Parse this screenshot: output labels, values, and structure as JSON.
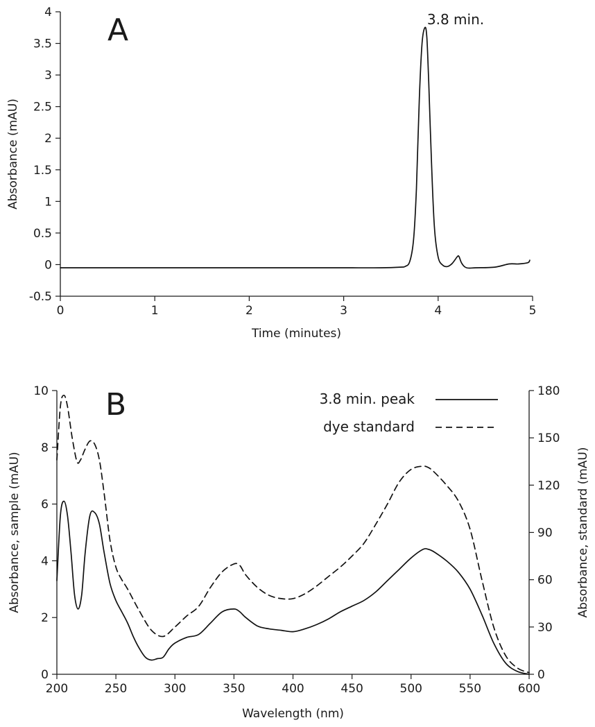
{
  "chart_data": [
    {
      "type": "line",
      "panel_label": "A",
      "xlabel": "Time (minutes)",
      "ylabel": "Absorbance (mAU)",
      "xlim": [
        0,
        5
      ],
      "ylim": [
        -0.5,
        4
      ],
      "xticks": [
        0,
        1,
        2,
        3,
        4,
        5
      ],
      "yticks": [
        -0.5,
        0,
        0.5,
        1,
        1.5,
        2,
        2.5,
        3,
        3.5,
        4
      ],
      "ytick_labels": [
        "-0.5",
        "0",
        "0.5",
        "1",
        "1.5",
        "2",
        "2.5",
        "3",
        "3.5",
        "4"
      ],
      "annotation": "3.8 min.",
      "grid": false,
      "series": [
        {
          "x": [
            0,
            0.5,
            1,
            1.5,
            2,
            2.5,
            3,
            3.4,
            3.6,
            3.65,
            3.7,
            3.74,
            3.77,
            3.8,
            3.83,
            3.86,
            3.88,
            3.9,
            3.93,
            3.96,
            4.0,
            4.05,
            4.1,
            4.15,
            4.2,
            4.22,
            4.25,
            4.3,
            4.4,
            4.6,
            4.75,
            4.85,
            4.95,
            4.97
          ],
          "y": [
            -0.05,
            -0.05,
            -0.05,
            -0.05,
            -0.05,
            -0.05,
            -0.05,
            -0.05,
            -0.04,
            -0.03,
            0.05,
            0.4,
            1.2,
            2.6,
            3.5,
            3.75,
            3.6,
            2.9,
            1.6,
            0.6,
            0.12,
            -0.01,
            -0.03,
            0.02,
            0.12,
            0.13,
            0.02,
            -0.05,
            -0.05,
            -0.04,
            0.01,
            0.01,
            0.03,
            0.07
          ]
        }
      ]
    },
    {
      "type": "line",
      "panel_label": "B",
      "xlabel": "Wavelength (nm)",
      "ylabel": "Absorbance, sample (mAU)",
      "ylabel_right": "Absorbance, standard (mAU)",
      "xlim": [
        200,
        600
      ],
      "ylim": [
        0,
        10
      ],
      "ylim_right": [
        0,
        180
      ],
      "xticks": [
        200,
        250,
        300,
        350,
        400,
        450,
        500,
        550,
        600
      ],
      "yticks": [
        0,
        2,
        4,
        6,
        8,
        10
      ],
      "yticks_right": [
        0,
        30,
        60,
        90,
        120,
        150,
        180
      ],
      "legend_position": "top-right",
      "grid": false,
      "series": [
        {
          "name": "3.8 min. peak",
          "style": "solid",
          "axis": "left",
          "x": [
            200,
            203,
            206,
            209,
            212,
            215,
            218,
            221,
            224,
            228,
            232,
            236,
            240,
            245,
            250,
            255,
            260,
            265,
            270,
            275,
            280,
            285,
            290,
            295,
            300,
            310,
            320,
            330,
            340,
            350,
            355,
            360,
            370,
            380,
            390,
            400,
            410,
            420,
            430,
            440,
            450,
            460,
            470,
            480,
            490,
            500,
            510,
            515,
            520,
            530,
            540,
            550,
            560,
            570,
            580,
            590,
            600
          ],
          "y": [
            3.3,
            5.6,
            6.1,
            5.6,
            4.3,
            2.8,
            2.3,
            2.8,
            4.3,
            5.6,
            5.7,
            5.3,
            4.3,
            3.2,
            2.6,
            2.2,
            1.8,
            1.3,
            0.9,
            0.6,
            0.5,
            0.55,
            0.6,
            0.9,
            1.1,
            1.3,
            1.4,
            1.8,
            2.2,
            2.3,
            2.2,
            2.0,
            1.7,
            1.6,
            1.55,
            1.5,
            1.6,
            1.75,
            1.95,
            2.2,
            2.4,
            2.6,
            2.9,
            3.3,
            3.7,
            4.1,
            4.4,
            4.4,
            4.3,
            4.0,
            3.6,
            3.0,
            2.1,
            1.1,
            0.4,
            0.1,
            0.0
          ]
        },
        {
          "name": "dye standard",
          "style": "dashed",
          "axis": "right",
          "x": [
            200,
            203,
            206,
            209,
            213,
            217,
            220,
            224,
            228,
            232,
            236,
            240,
            245,
            250,
            255,
            260,
            270,
            280,
            290,
            300,
            310,
            320,
            330,
            340,
            350,
            355,
            360,
            370,
            380,
            390,
            400,
            410,
            420,
            430,
            440,
            450,
            460,
            470,
            480,
            490,
            500,
            510,
            515,
            520,
            530,
            540,
            550,
            560,
            570,
            580,
            590,
            600
          ],
          "y": [
            136,
            170,
            177,
            170,
            150,
            135,
            136,
            143,
            148,
            146,
            136,
            115,
            85,
            68,
            60,
            54,
            40,
            28,
            24,
            30,
            37,
            43,
            55,
            65,
            70,
            69,
            63,
            55,
            50,
            48,
            48,
            51,
            56,
            62,
            68,
            75,
            83,
            95,
            108,
            122,
            130,
            132,
            131,
            128,
            120,
            110,
            92,
            60,
            30,
            12,
            4,
            1
          ]
        }
      ]
    }
  ]
}
